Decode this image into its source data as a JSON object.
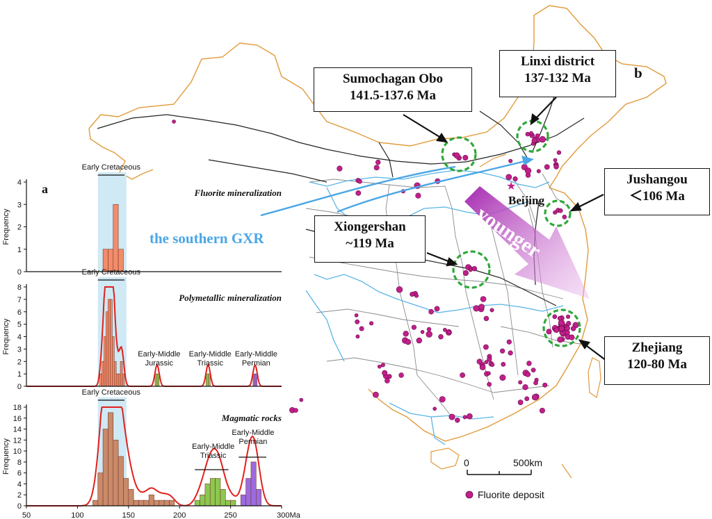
{
  "colors": {
    "boundary": "#e09a3a",
    "river": "#5ab4e6",
    "province": "#8a8a8a",
    "fault": "#222222",
    "deposit": "#c0208a",
    "cluster": "#2ea83a",
    "fluorite_bar": "#f28c6a",
    "magmatic_bar": "#c98a6a",
    "triassic_bar": "#8cc850",
    "permian_bar": "#9b6be0",
    "curve": "#e0201c",
    "band": "#cfe9f5",
    "gxr_arrow": "#4aa6e6",
    "younger_arrow": "#b43cb4"
  },
  "map": {
    "panel_label": "b",
    "capital_label": "Beijing",
    "gxr_label": "the southern GXR",
    "younger_label": "younger",
    "scale": {
      "zero": "0",
      "end": "500km"
    },
    "legend_label": "Fluorite deposit",
    "callouts": [
      {
        "name": "Sumochagan Obo",
        "age": "141.5-137.6 Ma"
      },
      {
        "name": "Linxi district",
        "age": "137-132 Ma"
      },
      {
        "name": "Jushangou",
        "age": "＜106 Ma"
      },
      {
        "name": "Xiongershan",
        "age": "~119 Ma"
      },
      {
        "name": "Zhejiang",
        "age": "120-80 Ma"
      }
    ]
  },
  "chart_data": [
    {
      "type": "bar",
      "panel_label": "a",
      "title": "Fluorite mineralization",
      "ylabel": "Frequency",
      "period_label": "Early Cretaceous",
      "bin_width": 5,
      "x": [
        125,
        130,
        135,
        140
      ],
      "values": [
        1,
        1,
        3,
        1
      ],
      "ylim": [
        0,
        4
      ],
      "yticks": [
        0,
        1,
        2,
        3,
        4
      ],
      "xlim": [
        50,
        300
      ],
      "highlight_range": [
        120,
        148
      ]
    },
    {
      "type": "bar",
      "title": "Polymetallic mineralization",
      "ylabel": "Frequency",
      "period_labels": [
        "Early Cretaceous",
        "Early-Middle Jurassic",
        "Early-Middle Triassic",
        "Early-Middle Permian"
      ],
      "bin_width": 2,
      "x": [
        122,
        124,
        126,
        128,
        130,
        132,
        134,
        136,
        138,
        140,
        142,
        144,
        176,
        178,
        226,
        228,
        272,
        274
      ],
      "values": [
        1,
        2,
        4,
        6,
        7,
        7,
        4,
        2,
        1,
        1,
        2,
        1,
        1,
        1,
        1,
        1,
        1,
        1
      ],
      "ylim": [
        0,
        8
      ],
      "yticks": [
        0,
        1,
        2,
        3,
        4,
        5,
        6,
        7,
        8
      ],
      "xlim": [
        50,
        300
      ],
      "highlight_range": [
        120,
        148
      ]
    },
    {
      "type": "bar",
      "title": "Magmatic rocks",
      "ylabel": "Frequency",
      "xlabel": "Ma",
      "period_labels": [
        "Early Cretaceous",
        "Early-Middle Triassic",
        "Early-Middle Permian"
      ],
      "bin_width": 5,
      "x": [
        115,
        120,
        125,
        130,
        135,
        140,
        145,
        150,
        155,
        160,
        165,
        170,
        175,
        180,
        185,
        190,
        215,
        220,
        225,
        230,
        235,
        240,
        245,
        250,
        260,
        265,
        270,
        275
      ],
      "values": [
        1,
        6,
        14,
        17,
        12,
        9,
        5,
        3,
        1,
        1,
        1,
        2,
        1,
        1,
        1,
        1,
        1,
        2,
        4,
        5,
        5,
        3,
        1,
        1,
        2,
        5,
        8,
        3
      ],
      "ylim": [
        0,
        18
      ],
      "yticks": [
        0,
        2,
        4,
        6,
        8,
        10,
        12,
        14,
        16,
        18
      ],
      "xticks": [
        50,
        100,
        150,
        200,
        250,
        300
      ],
      "xlim": [
        50,
        300
      ],
      "highlight_range": [
        120,
        148
      ]
    }
  ]
}
